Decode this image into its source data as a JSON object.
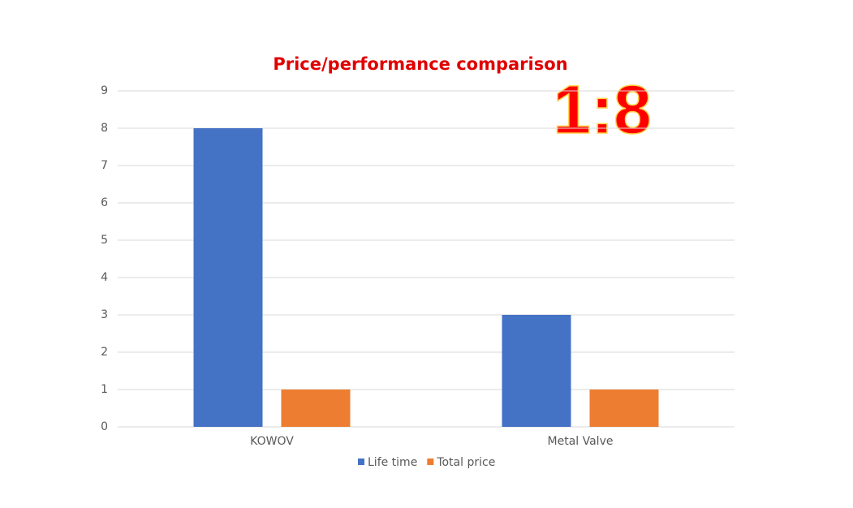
{
  "chart_data": {
    "type": "bar",
    "title": "Price/performance comparison",
    "annotation": "1:8",
    "categories": [
      "KOWOV",
      "Metal Valve"
    ],
    "series": [
      {
        "name": "Life time",
        "color": "#4472c4",
        "values": [
          8,
          3
        ]
      },
      {
        "name": "Total price",
        "color": "#ed7d31",
        "values": [
          1,
          1
        ]
      }
    ],
    "ylim": [
      0,
      9
    ],
    "yticks": [
      0,
      1,
      2,
      3,
      4,
      5,
      6,
      7,
      8,
      9
    ],
    "grid": true,
    "legend": "bottom"
  }
}
